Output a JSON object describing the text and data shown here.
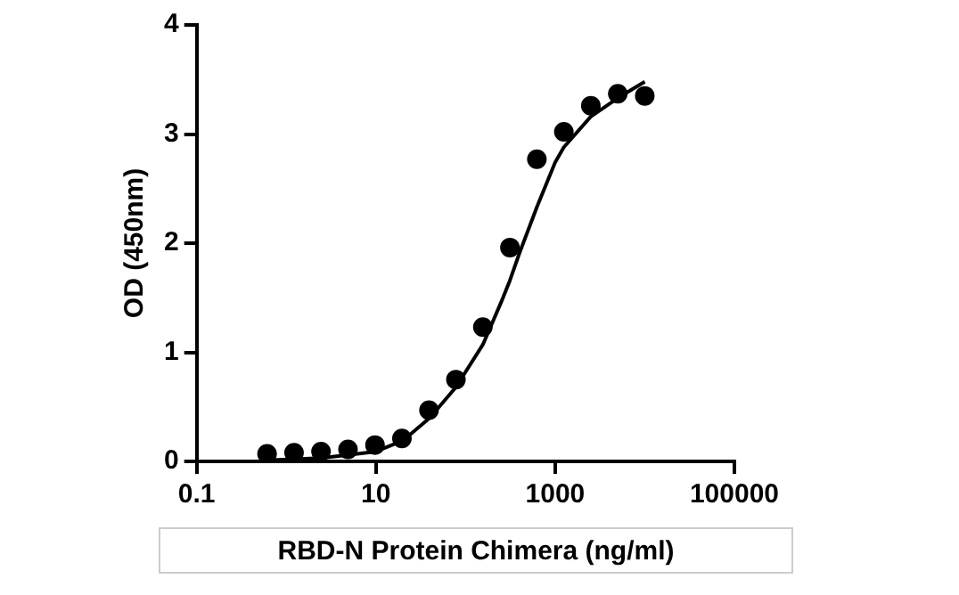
{
  "chart_data": {
    "type": "scatter",
    "xlabel": "RBD-N Protein Chimera (ng/ml)",
    "ylabel": "OD (450nm)",
    "log": "x",
    "xlim": [
      0.1,
      100000
    ],
    "xticks": [
      0.1,
      10,
      1000,
      100000
    ],
    "ylim": [
      0,
      4
    ],
    "yticks": [
      0,
      1,
      2,
      3,
      4
    ],
    "grid": false,
    "legend": false,
    "marker": "circle",
    "series": [
      {
        "color": "#000000",
        "x": [
          0.61,
          1.22,
          2.44,
          4.88,
          9.77,
          19.5,
          39.1,
          78.1,
          156,
          313,
          625,
          1250,
          2500,
          5000,
          10000
        ],
        "values": [
          0.07,
          0.08,
          0.09,
          0.11,
          0.15,
          0.21,
          0.47,
          0.75,
          1.23,
          1.96,
          2.77,
          3.02,
          3.26,
          3.37,
          3.35
        ]
      },
      {
        "type": "line",
        "color": "#000000",
        "marker": "none",
        "line_style": "solid",
        "x": [
          0.61,
          1.22,
          2.44,
          4.88,
          10,
          20,
          40,
          78,
          156,
          250,
          313,
          400,
          625,
          1000,
          1250,
          2500,
          5000,
          10000
        ],
        "values": [
          0.01,
          0.02,
          0.03,
          0.06,
          0.09,
          0.19,
          0.4,
          0.68,
          1.07,
          1.46,
          1.66,
          1.91,
          2.33,
          2.74,
          2.88,
          3.16,
          3.33,
          3.48
        ]
      }
    ]
  }
}
